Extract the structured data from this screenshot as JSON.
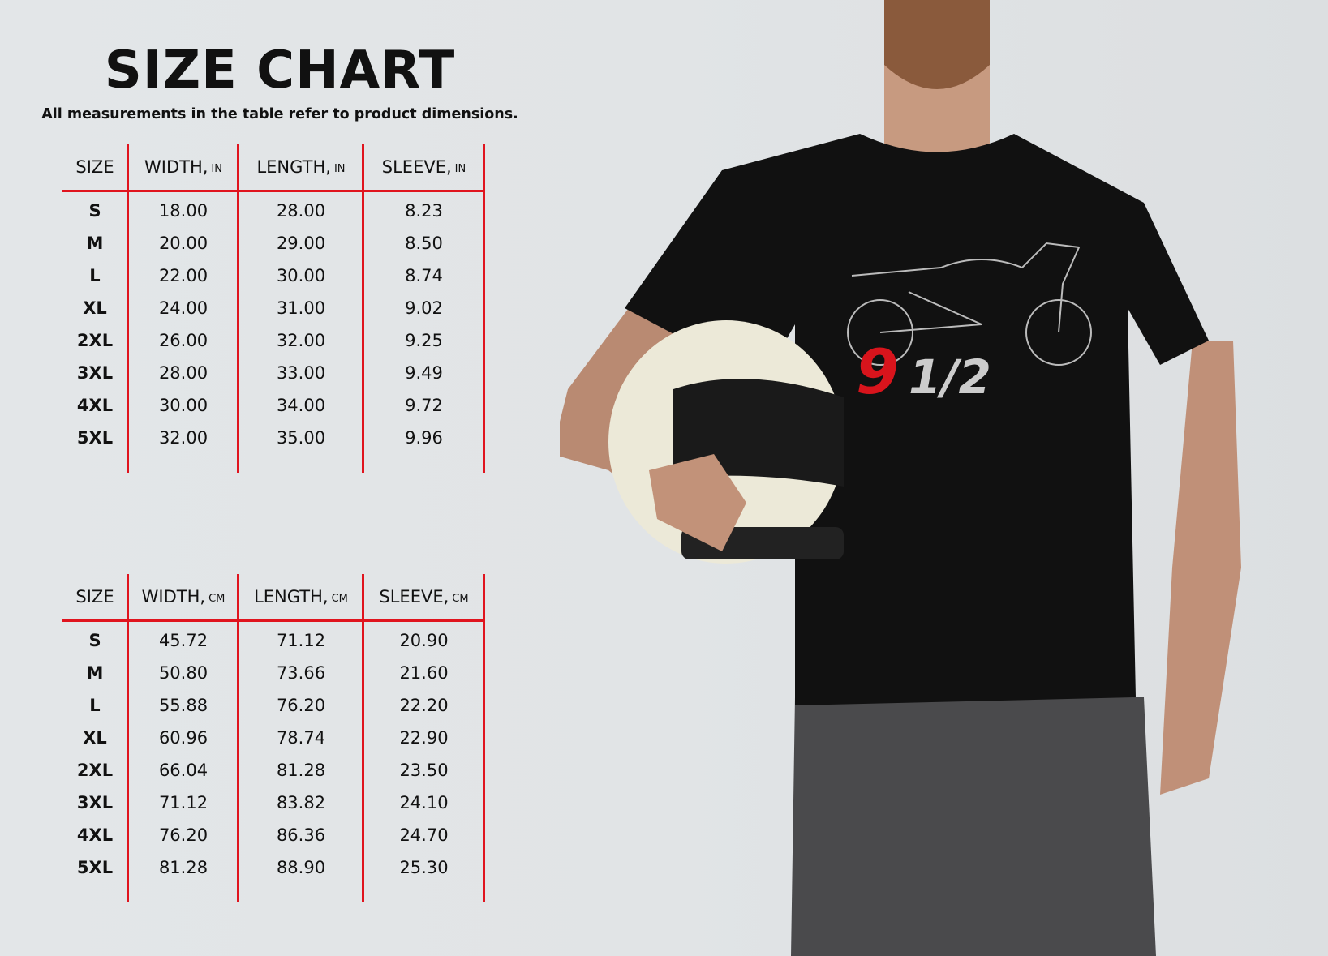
{
  "title": "SIZE CHART",
  "subtitle": "All measurements in the table refer to product dimensions.",
  "colors": {
    "accent": "#e0141e",
    "shirt": "#111111",
    "logo_red": "#d8141c"
  },
  "shirt_graphic": {
    "logo_text": "9 1/2",
    "icon": "motorcycle-outline-icon"
  },
  "tables": [
    {
      "unit": "IN",
      "headers": [
        {
          "label": "SIZE",
          "unit": ""
        },
        {
          "label": "WIDTH,",
          "unit": "IN"
        },
        {
          "label": "LENGTH,",
          "unit": "IN"
        },
        {
          "label": "SLEEVE,",
          "unit": "IN"
        }
      ],
      "rows": [
        [
          "S",
          "18.00",
          "28.00",
          "8.23"
        ],
        [
          "M",
          "20.00",
          "29.00",
          "8.50"
        ],
        [
          "L",
          "22.00",
          "30.00",
          "8.74"
        ],
        [
          "XL",
          "24.00",
          "31.00",
          "9.02"
        ],
        [
          "2XL",
          "26.00",
          "32.00",
          "9.25"
        ],
        [
          "3XL",
          "28.00",
          "33.00",
          "9.49"
        ],
        [
          "4XL",
          "30.00",
          "34.00",
          "9.72"
        ],
        [
          "5XL",
          "32.00",
          "35.00",
          "9.96"
        ]
      ]
    },
    {
      "unit": "CM",
      "headers": [
        {
          "label": "SIZE",
          "unit": ""
        },
        {
          "label": "WIDTH,",
          "unit": "CM"
        },
        {
          "label": "LENGTH,",
          "unit": "CM"
        },
        {
          "label": "SLEEVE,",
          "unit": "CM"
        }
      ],
      "rows": [
        [
          "S",
          "45.72",
          "71.12",
          "20.90"
        ],
        [
          "M",
          "50.80",
          "73.66",
          "21.60"
        ],
        [
          "L",
          "55.88",
          "76.20",
          "22.20"
        ],
        [
          "XL",
          "60.96",
          "78.74",
          "22.90"
        ],
        [
          "2XL",
          "66.04",
          "81.28",
          "23.50"
        ],
        [
          "3XL",
          "71.12",
          "83.82",
          "24.10"
        ],
        [
          "4XL",
          "76.20",
          "86.36",
          "24.70"
        ],
        [
          "5XL",
          "81.28",
          "88.90",
          "25.30"
        ]
      ]
    }
  ]
}
